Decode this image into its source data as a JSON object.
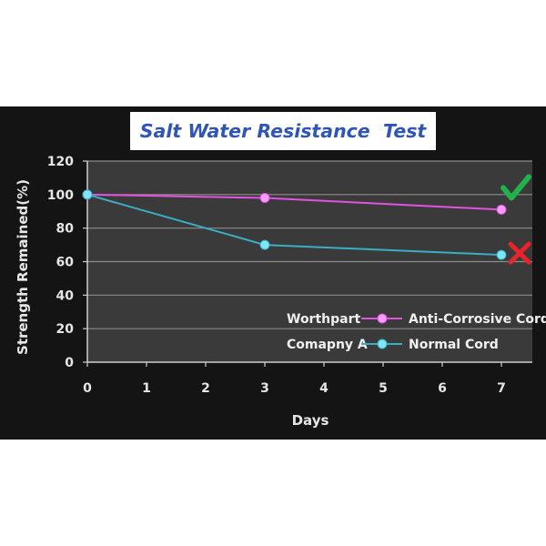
{
  "colors": {
    "background": "#141414",
    "plot_area": "#3a3a3a",
    "gridline": "#8c8c8c",
    "title_text": "#2f55b5",
    "check_mark": "#22b24c",
    "cross_mark": "#e8232a"
  },
  "icons": {
    "good": "check-mark-icon",
    "bad": "cross-mark-icon"
  },
  "chart_data": {
    "type": "line",
    "title": "Salt Water Resistance  Test",
    "xlabel": "Days",
    "ylabel": "Strength Remained(%)",
    "xlim": [
      0,
      7.5
    ],
    "ylim": [
      0,
      120
    ],
    "xticks": [
      0,
      1,
      2,
      3,
      4,
      5,
      6,
      7
    ],
    "yticks": [
      0,
      20,
      40,
      60,
      80,
      100,
      120
    ],
    "grid": {
      "horizontal": true,
      "vertical": false
    },
    "legend_position": "bottom-right",
    "series": [
      {
        "brand": "Worthpart",
        "name": "Anti-Corrosive Cord",
        "color": "#e052e0",
        "marker_color": "#ff9cff",
        "x": [
          0,
          3,
          7
        ],
        "y": [
          100,
          98,
          91
        ],
        "end_mark": "check-mark-icon"
      },
      {
        "brand": "Comapny A",
        "name": "Normal Cord",
        "color": "#3aaec4",
        "marker_color": "#7fe6f7",
        "x": [
          0,
          3,
          7
        ],
        "y": [
          100,
          70,
          64
        ],
        "end_mark": "cross-mark-icon"
      }
    ]
  }
}
